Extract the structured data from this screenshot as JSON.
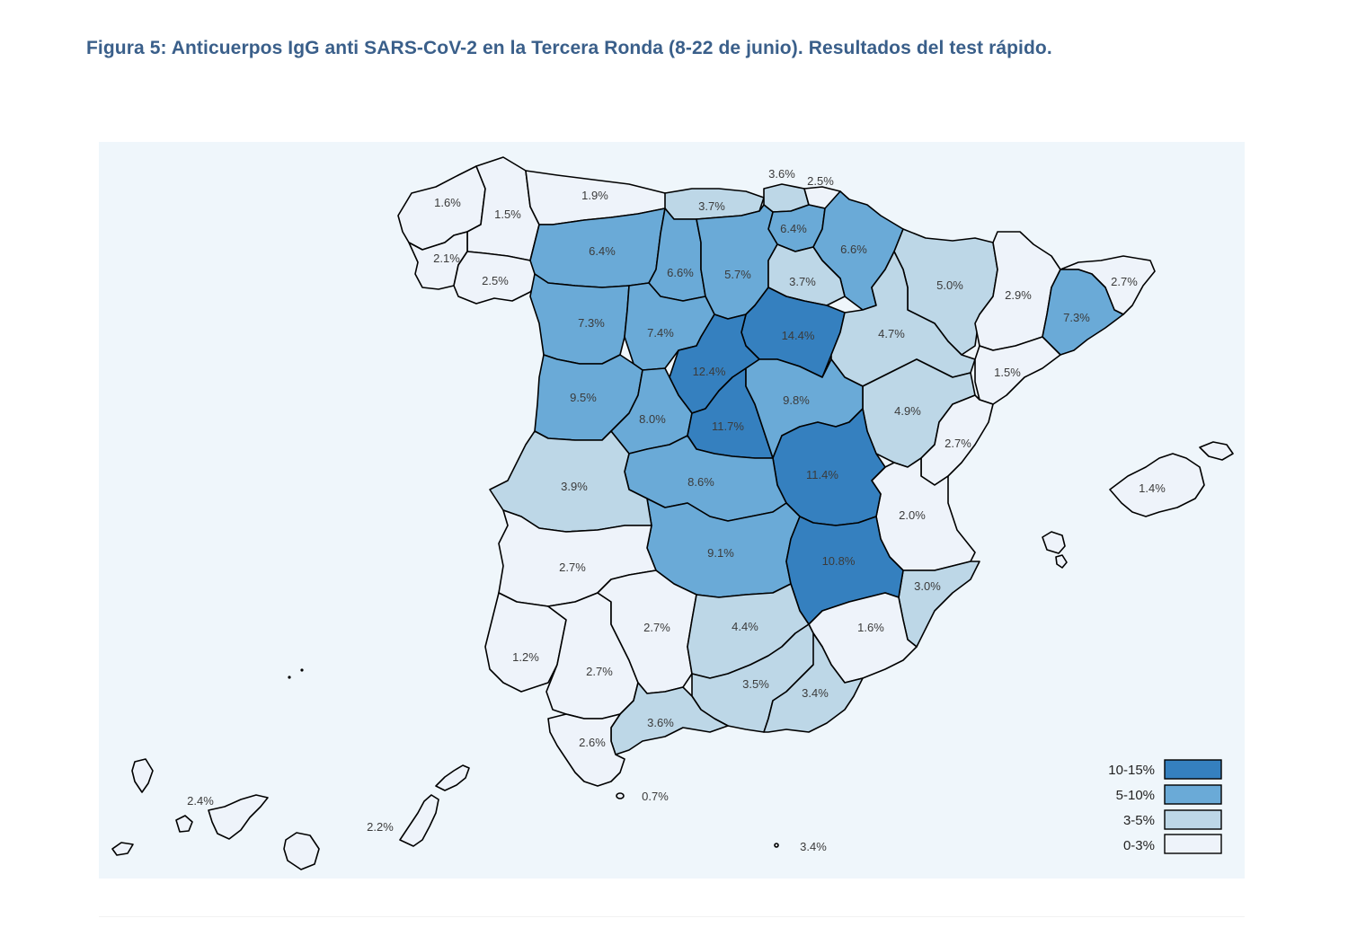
{
  "figure": {
    "title": "Figura 5: Anticuerpos IgG anti SARS-CoV-2 en la Tercera Ronda (8-22 de junio). Resultados del test rápido."
  },
  "legend": {
    "items": [
      {
        "label": "10-15%",
        "color": "#3580bf"
      },
      {
        "label": "5-10%",
        "color": "#6aaad7"
      },
      {
        "label": "3-5%",
        "color": "#bdd7e7"
      },
      {
        "label": "0-3%",
        "color": "#eef3fa"
      }
    ]
  },
  "provinces": [
    {
      "value": "1.6%"
    },
    {
      "value": "1.5%"
    },
    {
      "value": "1.9%"
    },
    {
      "value": "3.7%"
    },
    {
      "value": "3.6%"
    },
    {
      "value": "2.5%"
    },
    {
      "value": "6.4%"
    },
    {
      "value": "6.4%"
    },
    {
      "value": "6.6%"
    },
    {
      "value": "6.6%"
    },
    {
      "value": "5.7%"
    },
    {
      "value": "3.7%"
    },
    {
      "value": "5.0%"
    },
    {
      "value": "2.9%"
    },
    {
      "value": "2.7%"
    },
    {
      "value": "2.1%"
    },
    {
      "value": "2.5%"
    },
    {
      "value": "7.3%"
    },
    {
      "value": "7.4%"
    },
    {
      "value": "14.4%"
    },
    {
      "value": "4.7%"
    },
    {
      "value": "7.3%"
    },
    {
      "value": "12.4%"
    },
    {
      "value": "1.5%"
    },
    {
      "value": "9.5%"
    },
    {
      "value": "8.0%"
    },
    {
      "value": "9.8%"
    },
    {
      "value": "4.9%"
    },
    {
      "value": "11.7%"
    },
    {
      "value": "2.7%"
    },
    {
      "value": "11.4%"
    },
    {
      "value": "3.9%"
    },
    {
      "value": "8.6%"
    },
    {
      "value": "2.0%"
    },
    {
      "value": "1.4%"
    },
    {
      "value": "9.1%"
    },
    {
      "value": "2.7%"
    },
    {
      "value": "10.8%"
    },
    {
      "value": "3.0%"
    },
    {
      "value": "2.7%"
    },
    {
      "value": "4.4%"
    },
    {
      "value": "1.6%"
    },
    {
      "value": "1.2%"
    },
    {
      "value": "2.7%"
    },
    {
      "value": "3.5%"
    },
    {
      "value": "3.4%"
    },
    {
      "value": "3.6%"
    },
    {
      "value": "2.6%"
    },
    {
      "value": "0.7%"
    },
    {
      "value": "2.4%"
    },
    {
      "value": "2.2%"
    },
    {
      "value": "3.4%"
    }
  ]
}
